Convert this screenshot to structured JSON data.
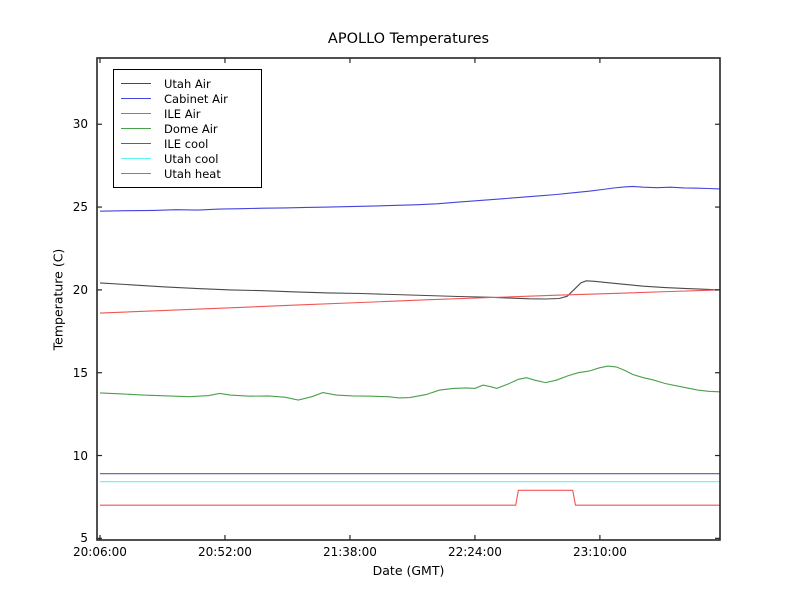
{
  "title": "APOLLO Temperatures",
  "background_color": "#ffffff",
  "axes_color": "#262626",
  "chart_data": {
    "type": "line",
    "title": "APOLLO Temperatures",
    "xlabel": "Date (GMT)",
    "ylabel": "Temperature (C)",
    "x_unit": "minutes after 20:06:00 GMT",
    "xlim_minutes": [
      -1.1,
      228.2
    ],
    "ylim": [
      4.9,
      34.0
    ],
    "grid": false,
    "legend_position": "upper left",
    "xticks": [
      {
        "t": 0,
        "label": "20:06:00"
      },
      {
        "t": 46,
        "label": "20:52:00"
      },
      {
        "t": 92,
        "label": "21:38:00"
      },
      {
        "t": 138,
        "label": "22:24:00"
      },
      {
        "t": 184,
        "label": "23:10:00"
      }
    ],
    "yticks": [
      {
        "v": 5,
        "label": "5"
      },
      {
        "v": 10,
        "label": "10"
      },
      {
        "v": 15,
        "label": "15"
      },
      {
        "v": 20,
        "label": "20"
      },
      {
        "v": 25,
        "label": "25"
      },
      {
        "v": 30,
        "label": "30"
      }
    ],
    "series": [
      {
        "name": "Utah Air",
        "color": "#4a4a4a",
        "points": [
          [
            0,
            20.42
          ],
          [
            12,
            20.3
          ],
          [
            24,
            20.18
          ],
          [
            36,
            20.08
          ],
          [
            48,
            20.0
          ],
          [
            60,
            19.95
          ],
          [
            72,
            19.88
          ],
          [
            84,
            19.82
          ],
          [
            96,
            19.78
          ],
          [
            108,
            19.72
          ],
          [
            120,
            19.66
          ],
          [
            132,
            19.6
          ],
          [
            144,
            19.55
          ],
          [
            152,
            19.5
          ],
          [
            158,
            19.46
          ],
          [
            164,
            19.45
          ],
          [
            169,
            19.48
          ],
          [
            172,
            19.62
          ],
          [
            175,
            20.1
          ],
          [
            177,
            20.42
          ],
          [
            179,
            20.55
          ],
          [
            182,
            20.52
          ],
          [
            186,
            20.45
          ],
          [
            192,
            20.35
          ],
          [
            200,
            20.22
          ],
          [
            208,
            20.14
          ],
          [
            216,
            20.08
          ],
          [
            222,
            20.04
          ],
          [
            228,
            20.0
          ]
        ]
      },
      {
        "name": "Cabinet Air",
        "color": "#4444dd",
        "points": [
          [
            0,
            24.75
          ],
          [
            10,
            24.78
          ],
          [
            20,
            24.8
          ],
          [
            28,
            24.84
          ],
          [
            36,
            24.82
          ],
          [
            44,
            24.88
          ],
          [
            52,
            24.9
          ],
          [
            60,
            24.93
          ],
          [
            68,
            24.95
          ],
          [
            76,
            24.98
          ],
          [
            84,
            25.0
          ],
          [
            92,
            25.03
          ],
          [
            100,
            25.06
          ],
          [
            108,
            25.1
          ],
          [
            116,
            25.14
          ],
          [
            124,
            25.2
          ],
          [
            132,
            25.3
          ],
          [
            140,
            25.4
          ],
          [
            148,
            25.5
          ],
          [
            156,
            25.6
          ],
          [
            162,
            25.68
          ],
          [
            168,
            25.76
          ],
          [
            174,
            25.86
          ],
          [
            180,
            25.96
          ],
          [
            185,
            26.06
          ],
          [
            189,
            26.15
          ],
          [
            193,
            26.22
          ],
          [
            196,
            26.25
          ],
          [
            200,
            26.2
          ],
          [
            205,
            26.17
          ],
          [
            210,
            26.2
          ],
          [
            215,
            26.16
          ],
          [
            220,
            26.14
          ],
          [
            224,
            26.12
          ],
          [
            228,
            26.1
          ]
        ]
      },
      {
        "name": "ILE Air",
        "color": "#f05555",
        "points": [
          [
            0,
            18.6
          ],
          [
            24,
            18.76
          ],
          [
            48,
            18.92
          ],
          [
            72,
            19.08
          ],
          [
            96,
            19.24
          ],
          [
            120,
            19.4
          ],
          [
            144,
            19.54
          ],
          [
            168,
            19.68
          ],
          [
            192,
            19.8
          ],
          [
            210,
            19.9
          ],
          [
            228,
            20.0
          ]
        ]
      },
      {
        "name": "Dome Air",
        "color": "#4aa04a",
        "points": [
          [
            0,
            13.78
          ],
          [
            8,
            13.72
          ],
          [
            16,
            13.65
          ],
          [
            25,
            13.6
          ],
          [
            33,
            13.55
          ],
          [
            40,
            13.62
          ],
          [
            44,
            13.75
          ],
          [
            48,
            13.65
          ],
          [
            55,
            13.58
          ],
          [
            62,
            13.6
          ],
          [
            68,
            13.52
          ],
          [
            73,
            13.35
          ],
          [
            78,
            13.55
          ],
          [
            82,
            13.8
          ],
          [
            87,
            13.65
          ],
          [
            93,
            13.6
          ],
          [
            100,
            13.58
          ],
          [
            106,
            13.55
          ],
          [
            110,
            13.48
          ],
          [
            114,
            13.5
          ],
          [
            120,
            13.68
          ],
          [
            125,
            13.95
          ],
          [
            130,
            14.05
          ],
          [
            135,
            14.08
          ],
          [
            138,
            14.05
          ],
          [
            141,
            14.25
          ],
          [
            144,
            14.15
          ],
          [
            146,
            14.05
          ],
          [
            150,
            14.3
          ],
          [
            154,
            14.6
          ],
          [
            157,
            14.7
          ],
          [
            160,
            14.55
          ],
          [
            164,
            14.4
          ],
          [
            168,
            14.55
          ],
          [
            172,
            14.8
          ],
          [
            176,
            15.0
          ],
          [
            180,
            15.1
          ],
          [
            184,
            15.3
          ],
          [
            187,
            15.4
          ],
          [
            190,
            15.35
          ],
          [
            193,
            15.15
          ],
          [
            196,
            14.9
          ],
          [
            200,
            14.7
          ],
          [
            204,
            14.55
          ],
          [
            208,
            14.35
          ],
          [
            214,
            14.15
          ],
          [
            220,
            13.95
          ],
          [
            224,
            13.88
          ],
          [
            228,
            13.85
          ]
        ]
      },
      {
        "name": "ILE cool",
        "color": "#5a5a9e",
        "points": [
          [
            0,
            8.9
          ],
          [
            228,
            8.9
          ]
        ]
      },
      {
        "name": "Utah cool",
        "color": "#5ff2f2",
        "points": [
          [
            0,
            8.42
          ],
          [
            228,
            8.42
          ]
        ]
      },
      {
        "name": "Utah heat",
        "color": "#f05555",
        "points": [
          [
            0,
            7.0
          ],
          [
            153,
            7.0
          ],
          [
            154,
            7.9
          ],
          [
            174,
            7.9
          ],
          [
            175,
            7.0
          ],
          [
            228,
            7.0
          ]
        ]
      }
    ]
  }
}
